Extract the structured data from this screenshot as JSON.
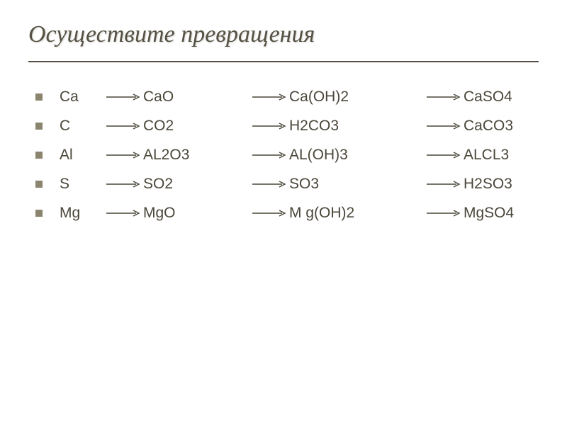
{
  "title": "Осуществите превращения",
  "style": {
    "title_color": "#565144",
    "title_fontsize": 34,
    "title_font": "Georgia, Times New Roman, serif",
    "title_style": "italic",
    "divider_color": "#565144",
    "bullet_color": "#8b846e",
    "bullet_size": 10,
    "body_text_color": "#4a4639",
    "body_fontsize": 21,
    "arrow_color": "#4a4639",
    "arrow_length": 48,
    "background": "#ffffff"
  },
  "rows": [
    {
      "terms": [
        "Ca",
        "CaO",
        "Ca(OH)2",
        "CaSO4"
      ]
    },
    {
      "terms": [
        "С",
        "CO2",
        "H2CO3",
        "CaCO3"
      ]
    },
    {
      "terms": [
        "Al",
        "AL2O3",
        "AL(OH)3",
        "ALCL3"
      ]
    },
    {
      "terms": [
        "S",
        "SO2",
        "SO3",
        "H2SO3"
      ]
    },
    {
      "terms": [
        "Mg",
        "MgO",
        "M g(OH)2",
        "MgSO4"
      ]
    }
  ]
}
